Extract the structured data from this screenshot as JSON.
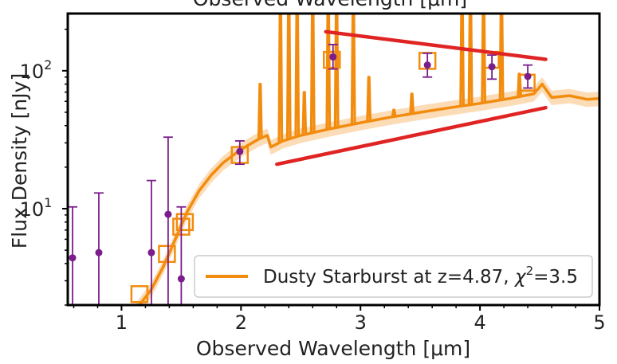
{
  "chart_data": {
    "type": "scatter",
    "title": "Observed Wavelength [μm]",
    "xlabel": "Observed Wavelength [μm]",
    "ylabel": "Flux Density [nJy]",
    "xlim": [
      0.55,
      5.0
    ],
    "ylim": [
      2.0,
      260
    ],
    "yscale": "log",
    "grid": false,
    "legend_position": "lower-right",
    "x_ticks": [
      {
        "value": 1,
        "label": "1"
      },
      {
        "value": 2,
        "label": "2"
      },
      {
        "value": 3,
        "label": "3"
      },
      {
        "value": 4,
        "label": "4"
      },
      {
        "value": 5,
        "label": "5"
      }
    ],
    "y_ticks": [
      {
        "value": 10,
        "base": "10",
        "exp": "1"
      },
      {
        "value": 100,
        "base": "10",
        "exp": "2"
      }
    ],
    "observed": {
      "color": "#7b1e8c",
      "points": [
        {
          "x": 0.59,
          "y": 4.4,
          "lo": 2.0,
          "hi": 10.3
        },
        {
          "x": 0.81,
          "y": 4.8,
          "lo": 2.0,
          "hi": 13.0
        },
        {
          "x": 1.25,
          "y": 4.8,
          "lo": 2.0,
          "hi": 16.0
        },
        {
          "x": 1.39,
          "y": 9.1,
          "lo": 2.0,
          "hi": 33.0
        },
        {
          "x": 1.5,
          "y": 3.1,
          "lo": 2.0,
          "hi": 10.3
        },
        {
          "x": 1.99,
          "y": 26.0,
          "lo": 21.0,
          "hi": 31.0
        },
        {
          "x": 2.77,
          "y": 126.0,
          "lo": 103.0,
          "hi": 155.0
        },
        {
          "x": 3.56,
          "y": 110.0,
          "lo": 90.0,
          "hi": 134.0
        },
        {
          "x": 4.1,
          "y": 107.0,
          "lo": 87.0,
          "hi": 130.0
        },
        {
          "x": 4.4,
          "y": 91.0,
          "lo": 75.0,
          "hi": 110.0
        }
      ]
    },
    "model_photometry": {
      "color": "#f28c0f",
      "points": [
        {
          "x": 1.15,
          "y": 2.4
        },
        {
          "x": 1.38,
          "y": 4.7
        },
        {
          "x": 1.5,
          "y": 7.4
        },
        {
          "x": 1.53,
          "y": 8.0
        },
        {
          "x": 1.99,
          "y": 24.5
        },
        {
          "x": 2.76,
          "y": 120.0
        },
        {
          "x": 3.56,
          "y": 118.0
        },
        {
          "x": 4.09,
          "y": 120.0
        },
        {
          "x": 4.39,
          "y": 82.0
        }
      ]
    },
    "series": [
      {
        "name": "Dusty Starburst at z=4.87, χ²=3.5",
        "color": "#f28c0f",
        "x": [
          1.07,
          1.15,
          1.25,
          1.35,
          1.45,
          1.55,
          1.65,
          1.75,
          1.85,
          1.95,
          2.05,
          2.15,
          2.22,
          2.25,
          2.35,
          2.5,
          2.75,
          3.0,
          3.25,
          3.5,
          3.75,
          4.0,
          4.25,
          4.45,
          4.52,
          4.6,
          4.75,
          4.9,
          5.0
        ],
        "y": [
          1.6,
          2.0,
          2.6,
          3.8,
          6.0,
          9.5,
          13.5,
          17.5,
          21.5,
          25.0,
          28.5,
          32.0,
          34.0,
          28.0,
          31.0,
          34.0,
          38.0,
          42.0,
          46.0,
          50.0,
          54.0,
          58.0,
          63.0,
          68.0,
          80.0,
          64.0,
          66.0,
          62.0,
          63.0
        ]
      }
    ],
    "emission_lines": [
      {
        "x": 2.16,
        "y": 80
      },
      {
        "x": 2.33,
        "y": 400
      },
      {
        "x": 2.4,
        "y": 400
      },
      {
        "x": 2.47,
        "y": 400
      },
      {
        "x": 2.53,
        "y": 70
      },
      {
        "x": 2.6,
        "y": 400
      },
      {
        "x": 2.73,
        "y": 400
      },
      {
        "x": 2.8,
        "y": 400
      },
      {
        "x": 2.94,
        "y": 400
      },
      {
        "x": 3.07,
        "y": 90
      },
      {
        "x": 3.28,
        "y": 52
      },
      {
        "x": 3.43,
        "y": 68
      },
      {
        "x": 3.85,
        "y": 400
      },
      {
        "x": 3.92,
        "y": 400
      },
      {
        "x": 4.03,
        "y": 400
      },
      {
        "x": 4.18,
        "y": 400
      },
      {
        "x": 4.33,
        "y": 95
      }
    ],
    "trend_lines": [
      {
        "color": "#e02424",
        "x": [
          2.71,
          4.55
        ],
        "y": [
          192,
          121
        ]
      },
      {
        "color": "#e02424",
        "x": [
          2.3,
          4.55
        ],
        "y": [
          21,
          54
        ]
      }
    ],
    "legend": {
      "label": "Dusty Starburst at z=4.87, χ²=3.5",
      "label_main": "Dusty Starburst at z=4.87, ",
      "label_chi": "χ",
      "label_chi_sup": "2",
      "label_tail": "=3.5"
    }
  }
}
